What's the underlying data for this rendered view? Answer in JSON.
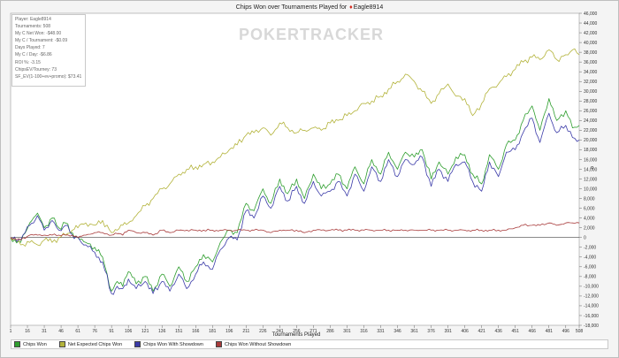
{
  "header": {
    "title_prefix": "Chips Won over Tournaments Played for",
    "player": "Eagle8914"
  },
  "watermark": "POKERTRACKER",
  "stats": [
    "Player: Eagle8914",
    "Tournaments: 508",
    "My C Net Won: -$48.00",
    "My C / Tournament: -$0.09",
    "Days Played: 7",
    "My C / Day: -$6.86",
    "ROI %: -3.15",
    "ChipsEV/Tourney: 73",
    "SF_EV(1-100+ev+promo): $73.41"
  ],
  "chart_data": {
    "type": "line",
    "title": "Chips Won over Tournaments Played for Eagle8914",
    "xlabel": "Tournaments Played",
    "ylabel": "",
    "xlim": [
      1,
      508
    ],
    "ylim": [
      -18000,
      46000
    ],
    "x_ticks": [
      1,
      16,
      31,
      46,
      61,
      76,
      91,
      106,
      121,
      136,
      151,
      166,
      181,
      196,
      211,
      226,
      241,
      256,
      271,
      286,
      301,
      316,
      331,
      346,
      361,
      376,
      391,
      406,
      421,
      436,
      451,
      466,
      481,
      496,
      508
    ],
    "y_ticks": [
      -18000,
      -16000,
      -14000,
      -12000,
      -10000,
      -8000,
      -6000,
      -4000,
      -2000,
      0,
      2000,
      4000,
      6000,
      8000,
      10000,
      12000,
      14000,
      16000,
      18000,
      20000,
      22000,
      24000,
      26000,
      28000,
      30000,
      32000,
      34000,
      36000,
      38000,
      40000,
      42000,
      44000,
      46000
    ],
    "grid": false,
    "legend_position": "bottom",
    "series": [
      {
        "name": "Chips Won",
        "color": "#2e9e2e",
        "x": [
          1,
          10,
          18,
          25,
          31,
          38,
          44,
          50,
          56,
          61,
          68,
          76,
          83,
          91,
          96,
          101,
          106,
          113,
          121,
          128,
          136,
          143,
          151,
          158,
          166,
          173,
          181,
          188,
          196,
          203,
          211,
          218,
          226,
          233,
          241,
          248,
          256,
          263,
          271,
          278,
          286,
          293,
          301,
          308,
          316,
          323,
          331,
          338,
          346,
          353,
          361,
          368,
          376,
          383,
          391,
          398,
          406,
          413,
          421,
          428,
          436,
          443,
          451,
          458,
          466,
          473,
          481,
          488,
          496,
          502,
          508
        ],
        "y": [
          0,
          -1000,
          3000,
          5000,
          2000,
          4000,
          2000,
          3000,
          1000,
          0,
          -1000,
          -2000,
          -4000,
          -11000,
          -9000,
          -10000,
          -7000,
          -9500,
          -8000,
          -11000,
          -7500,
          -10000,
          -6000,
          -9000,
          -6000,
          -3500,
          -5000,
          -1000,
          1500,
          1000,
          7000,
          5500,
          10000,
          7000,
          12000,
          9000,
          12000,
          8000,
          13000,
          10000,
          11000,
          13000,
          10000,
          14500,
          11000,
          16000,
          13000,
          17500,
          14000,
          17500,
          16500,
          18000,
          12000,
          15500,
          13000,
          16500,
          17000,
          13000,
          11000,
          17000,
          14000,
          19000,
          20000,
          24000,
          27000,
          22000,
          28500,
          24000,
          26000,
          22500,
          23000
        ]
      },
      {
        "name": "Net Expected Chips Won",
        "color": "#b3b33a",
        "x": [
          1,
          10,
          18,
          25,
          31,
          38,
          44,
          50,
          56,
          61,
          68,
          76,
          83,
          91,
          96,
          101,
          106,
          113,
          121,
          128,
          136,
          143,
          151,
          158,
          166,
          173,
          181,
          188,
          196,
          203,
          211,
          218,
          226,
          233,
          241,
          248,
          256,
          263,
          271,
          278,
          286,
          293,
          301,
          308,
          316,
          323,
          331,
          338,
          346,
          353,
          361,
          368,
          376,
          383,
          391,
          398,
          406,
          413,
          421,
          428,
          436,
          443,
          451,
          458,
          466,
          473,
          481,
          488,
          496,
          502,
          508
        ],
        "y": [
          0,
          -1500,
          -1000,
          -1500,
          -500,
          -1000,
          0,
          500,
          1500,
          2000,
          3000,
          2500,
          3500,
          1000,
          1500,
          2500,
          3000,
          4500,
          6500,
          8000,
          10000,
          11000,
          13000,
          14000,
          14500,
          15000,
          15500,
          16500,
          18000,
          19000,
          21000,
          21500,
          22500,
          21000,
          23500,
          22500,
          21500,
          22000,
          22500,
          22000,
          23500,
          24000,
          25000,
          26000,
          27500,
          28000,
          29000,
          30500,
          32000,
          33500,
          32000,
          30000,
          27500,
          29500,
          31500,
          29000,
          28500,
          25000,
          27500,
          30500,
          31500,
          33000,
          34500,
          36000,
          37000,
          36500,
          38500,
          36500,
          37500,
          38500,
          37500
        ]
      },
      {
        "name": "Chips Won With Showdown",
        "color": "#3a3aa8",
        "x": [
          1,
          10,
          18,
          25,
          31,
          38,
          44,
          50,
          56,
          61,
          68,
          76,
          83,
          91,
          96,
          101,
          106,
          113,
          121,
          128,
          136,
          143,
          151,
          158,
          166,
          173,
          181,
          188,
          196,
          203,
          211,
          218,
          226,
          233,
          241,
          248,
          256,
          263,
          271,
          278,
          286,
          293,
          301,
          308,
          316,
          323,
          331,
          338,
          346,
          353,
          361,
          368,
          376,
          383,
          391,
          398,
          406,
          413,
          421,
          428,
          436,
          443,
          451,
          458,
          466,
          473,
          481,
          488,
          496,
          502,
          508
        ],
        "y": [
          0,
          -500,
          2500,
          4500,
          1500,
          3500,
          1500,
          2500,
          500,
          0,
          -1500,
          -3000,
          -5000,
          -11500,
          -10000,
          -10500,
          -8500,
          -10500,
          -9000,
          -11500,
          -9000,
          -11000,
          -7500,
          -10500,
          -7500,
          -5000,
          -6500,
          -2500,
          0,
          -500,
          5500,
          4000,
          8500,
          6000,
          10500,
          7500,
          10500,
          7000,
          11500,
          8500,
          9500,
          11500,
          8500,
          13000,
          9500,
          14500,
          11500,
          16000,
          12500,
          16000,
          15000,
          16500,
          10500,
          14000,
          11500,
          15000,
          15500,
          11500,
          9500,
          15500,
          12500,
          17500,
          18000,
          21500,
          24500,
          19500,
          25500,
          21500,
          23000,
          20500,
          20000
        ]
      },
      {
        "name": "Chips Won Without Showdown",
        "color": "#a83a3a",
        "x": [
          1,
          10,
          18,
          25,
          31,
          38,
          44,
          50,
          56,
          61,
          68,
          76,
          83,
          91,
          96,
          101,
          106,
          113,
          121,
          128,
          136,
          143,
          151,
          158,
          166,
          173,
          181,
          188,
          196,
          203,
          211,
          218,
          226,
          233,
          241,
          248,
          256,
          263,
          271,
          278,
          286,
          293,
          301,
          308,
          316,
          323,
          331,
          338,
          346,
          353,
          361,
          368,
          376,
          383,
          391,
          398,
          406,
          413,
          421,
          428,
          436,
          443,
          451,
          458,
          466,
          473,
          481,
          488,
          496,
          502,
          508
        ],
        "y": [
          0,
          -500,
          500,
          500,
          500,
          500,
          500,
          500,
          500,
          0,
          500,
          1000,
          1000,
          500,
          800,
          500,
          1500,
          1000,
          1000,
          500,
          1500,
          1000,
          1500,
          1500,
          1500,
          1500,
          1500,
          1500,
          1500,
          1500,
          1500,
          1500,
          1500,
          1000,
          1500,
          1500,
          1500,
          1000,
          1500,
          1500,
          1500,
          1500,
          1500,
          1500,
          1500,
          1500,
          1500,
          1500,
          1500,
          1500,
          1500,
          1500,
          1500,
          1500,
          1500,
          1500,
          1500,
          1500,
          1500,
          1500,
          1500,
          1500,
          2000,
          2500,
          2500,
          2500,
          3000,
          2500,
          3000,
          3000,
          3000
        ]
      }
    ]
  }
}
